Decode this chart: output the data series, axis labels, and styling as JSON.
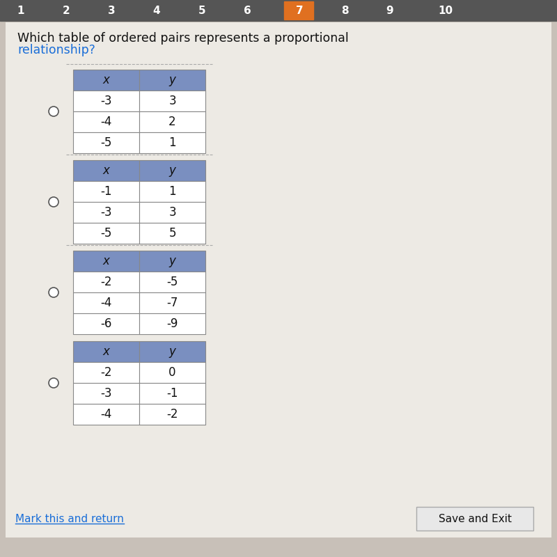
{
  "title1": "Which table of ordered pairs represents a proportional ",
  "title2": "relationship?",
  "title_color": "#111111",
  "relationship_color": "#1a6ed8",
  "background_color": "#c8c0b8",
  "content_bg_color": "#edeae4",
  "table_header_color": "#7a8fc0",
  "table_bg_color": "#ffffff",
  "tables": [
    {
      "x_vals": [
        "-3",
        "-4",
        "-5"
      ],
      "y_vals": [
        "3",
        "2",
        "1"
      ]
    },
    {
      "x_vals": [
        "-1",
        "-3",
        "-5"
      ],
      "y_vals": [
        "1",
        "3",
        "5"
      ]
    },
    {
      "x_vals": [
        "-2",
        "-4",
        "-6"
      ],
      "y_vals": [
        "-5",
        "-7",
        "-9"
      ]
    },
    {
      "x_vals": [
        "-2",
        "-3",
        "-4"
      ],
      "y_vals": [
        "0",
        "-1",
        "-2"
      ]
    }
  ],
  "bottom_link_text": "Mark this and return",
  "bottom_link_color": "#1a6ed8",
  "save_button_text": "Save and Exit",
  "tab_numbers": [
    "1",
    "2",
    "3",
    "4",
    "5",
    "6",
    "7",
    "8",
    "9",
    "10"
  ],
  "tab_bg_color": "#555555",
  "tab_highlight_color": "#e07020",
  "tab_positions": [
    30,
    95,
    160,
    225,
    290,
    355,
    430,
    495,
    560,
    640
  ],
  "tab_highlight_index": 6
}
